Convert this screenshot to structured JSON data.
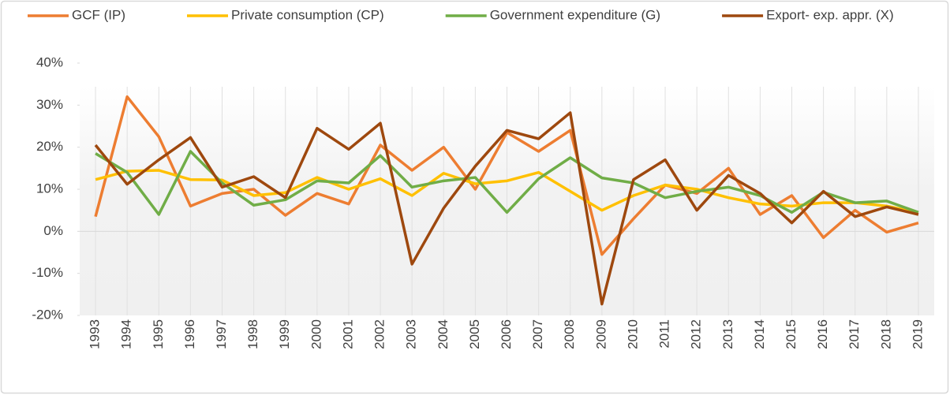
{
  "chart_data": {
    "type": "line",
    "categories": [
      "1993",
      "1994",
      "1995",
      "1996",
      "1997",
      "1998",
      "1999",
      "2000",
      "2001",
      "2002",
      "2003",
      "2004",
      "2005",
      "2006",
      "2007",
      "2008",
      "2009",
      "2010",
      "2011",
      "2012",
      "2013",
      "2014",
      "2015",
      "2016",
      "2017",
      "2018",
      "2019"
    ],
    "series": [
      {
        "name": "GCF (IP)",
        "color": "#ed7d31",
        "values": [
          3.5,
          32,
          22.5,
          6,
          9,
          10,
          3.8,
          9,
          6.5,
          20.5,
          14.5,
          20,
          10,
          23.5,
          19,
          24,
          -5.5,
          3,
          11,
          9,
          15,
          4,
          8.5,
          -1.5,
          5,
          -0.2,
          2
        ]
      },
      {
        "name": "Private consumption (CP)",
        "color": "#ffc000",
        "values": [
          12.3,
          14.3,
          14.5,
          12.3,
          12.2,
          8.5,
          9.2,
          12.8,
          10,
          12.5,
          8.5,
          13.8,
          11.3,
          12,
          14,
          9.5,
          5,
          8.5,
          11,
          10,
          8,
          6.5,
          6,
          6.8,
          6.8,
          6,
          4.5
        ]
      },
      {
        "name": "Government expenditure (G)",
        "color": "#70ad47",
        "values": [
          18.5,
          14,
          4,
          19,
          11.5,
          6.2,
          7.5,
          12,
          11.5,
          18,
          10.5,
          12,
          12.8,
          4.5,
          12.5,
          17.5,
          12.7,
          11.5,
          8,
          9.5,
          10.5,
          8.5,
          4.5,
          9.3,
          6.8,
          7.2,
          4.5
        ]
      },
      {
        "name": "Export- exp. appr. (X)",
        "color": "#9e480e",
        "values": [
          20.5,
          11.2,
          17,
          22.3,
          10.5,
          13,
          8,
          24.5,
          19.5,
          25.7,
          -7.8,
          5.5,
          15.5,
          24,
          22,
          28.2,
          -17.3,
          12.3,
          17,
          5,
          13.3,
          9,
          2,
          9.5,
          3.5,
          5.8,
          4
        ]
      }
    ],
    "ylim": [
      -20,
      40
    ],
    "yticks": [
      {
        "value": -20,
        "label": "-20%"
      },
      {
        "value": -10,
        "label": "-10%"
      },
      {
        "value": 0,
        "label": "0%"
      },
      {
        "value": 10,
        "label": "10%"
      },
      {
        "value": 20,
        "label": "20%"
      },
      {
        "value": 30,
        "label": "30%"
      },
      {
        "value": 40,
        "label": "40%"
      }
    ],
    "legend": "top"
  }
}
